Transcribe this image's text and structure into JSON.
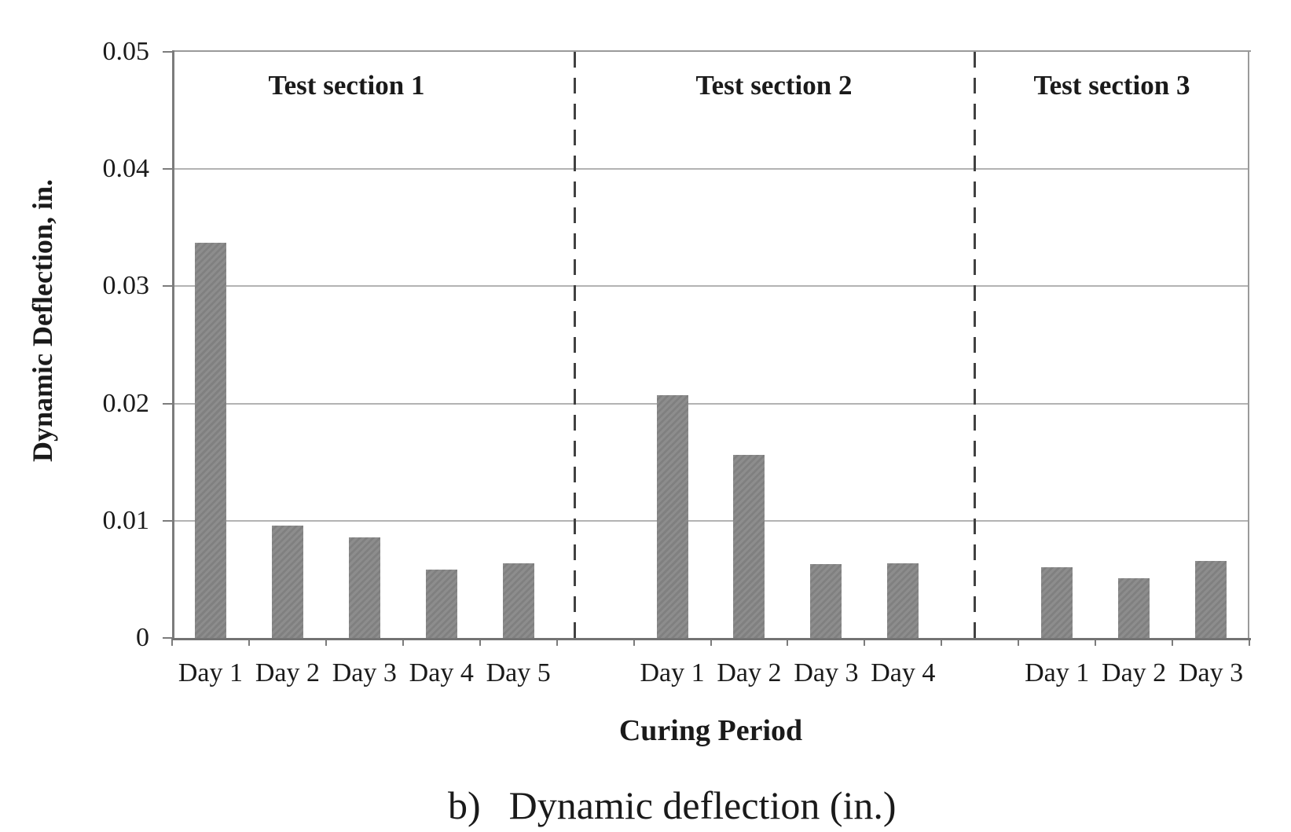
{
  "figure": {
    "caption": {
      "prefix": "b)",
      "text": "Dynamic deflection (in.)"
    }
  },
  "chart_data": {
    "type": "bar",
    "title": "",
    "xlabel": "Curing Period",
    "ylabel": "Dynamic Deflection, in.",
    "ylim": [
      0,
      0.05
    ],
    "ytick_interval": 0.01,
    "yticks": [
      {
        "value": 0.0,
        "label": "0"
      },
      {
        "value": 0.01,
        "label": "0.01"
      },
      {
        "value": 0.02,
        "label": "0.02"
      },
      {
        "value": 0.03,
        "label": "0.03"
      },
      {
        "value": 0.04,
        "label": "0.04"
      },
      {
        "value": 0.05,
        "label": "0.05"
      }
    ],
    "grid": true,
    "legend_position": "none",
    "group_divider_style": "dashed",
    "groups": [
      {
        "label": "Test section 1",
        "categories": [
          "Day 1",
          "Day 2",
          "Day 3",
          "Day 4",
          "Day 5"
        ],
        "values": [
          0.0337,
          0.0096,
          0.0086,
          0.0058,
          0.0064
        ]
      },
      {
        "label": "Test section 2",
        "categories": [
          "Day 1",
          "Day 2",
          "Day 3",
          "Day 4"
        ],
        "values": [
          0.0207,
          0.0156,
          0.0063,
          0.0064
        ]
      },
      {
        "label": "Test section 3",
        "categories": [
          "Day 1",
          "Day 2",
          "Day 3"
        ],
        "values": [
          0.006,
          0.0051,
          0.0066
        ]
      }
    ],
    "colors": {
      "bar": "#878787",
      "gridline": "#b3b3b3",
      "axis": "#7c7c7c",
      "divider": "#414141",
      "text": "#1a1a1a",
      "background": "#ffffff"
    }
  }
}
